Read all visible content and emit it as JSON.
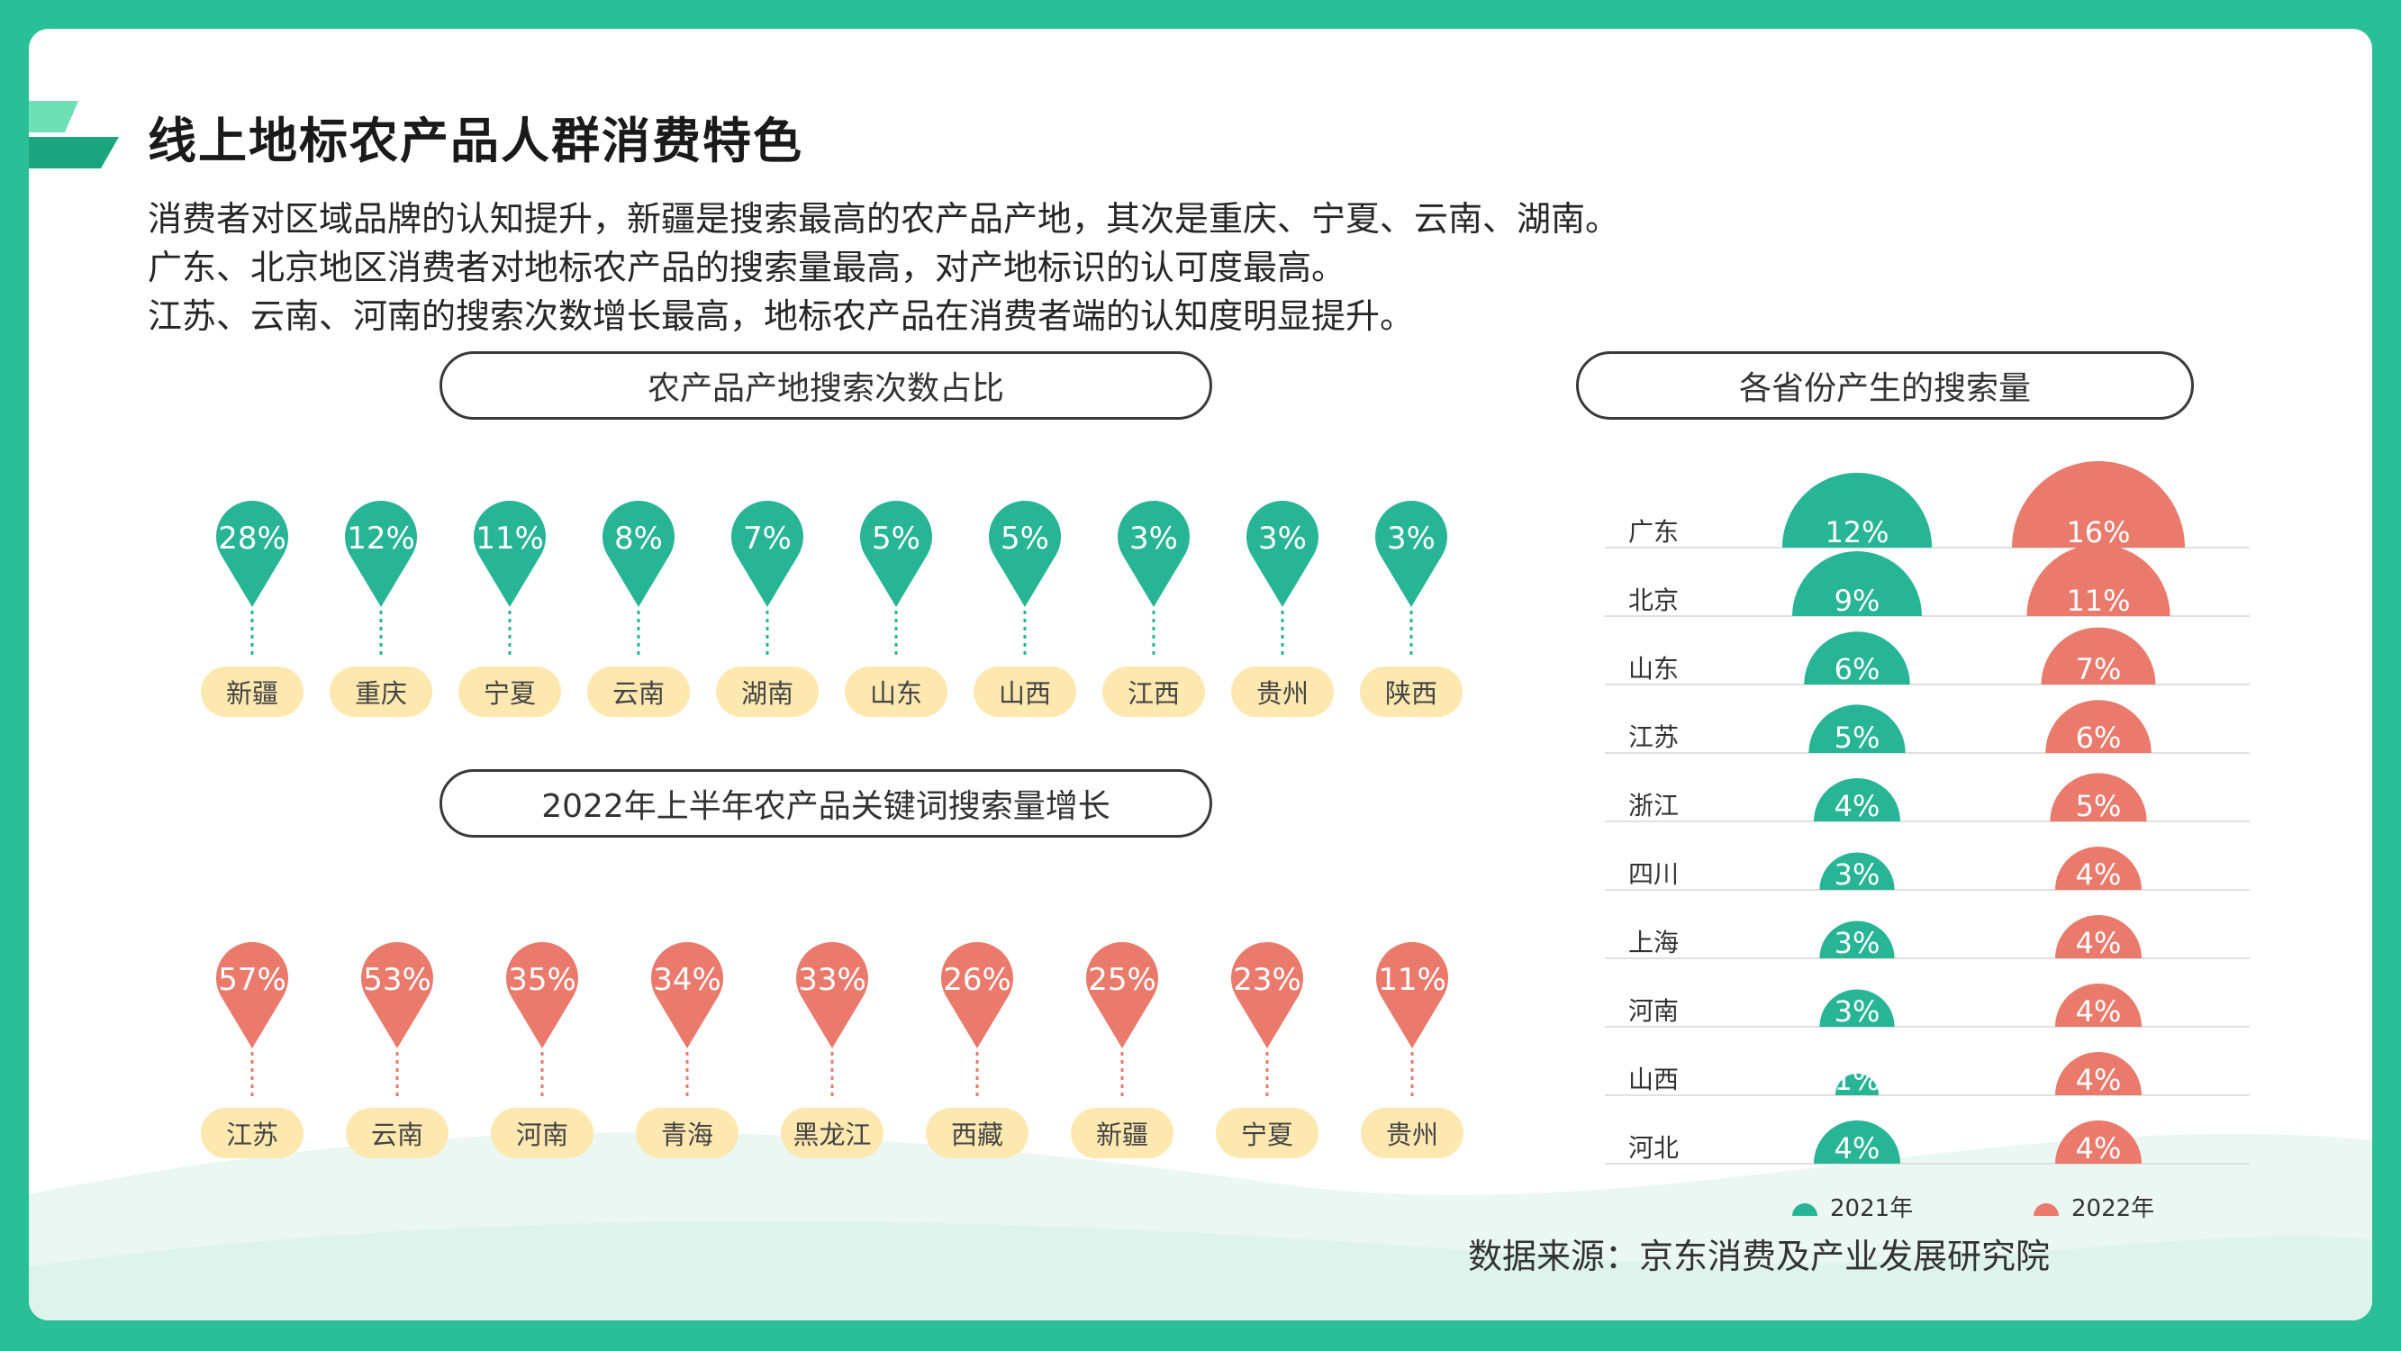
{
  "title": "线上地标农产品人群消费特色",
  "descriptions": [
    "消费者对区域品牌的认知提升，新疆是搜索最高的农产品产地，其次是重庆、宁夏、云南、湖南。",
    "广东、北京地区消费者对地标农产品的搜索量最高，对产地标识的认可度最高。",
    "江苏、云南、河南的搜索次数增长最高，地标农产品在消费者端的认知度明显提升。"
  ],
  "source": "数据来源：京东消费及产业发展研究院",
  "colors": {
    "teal": "#27b596",
    "coral": "#ea7a6c",
    "tag": "#fde8b0",
    "frame": "#2bbf98"
  },
  "chart_data": [
    {
      "type": "bar",
      "title": "农产品产地搜索次数占比",
      "categories": [
        "新疆",
        "重庆",
        "宁夏",
        "云南",
        "湖南",
        "山东",
        "山西",
        "江西",
        "贵州",
        "陕西"
      ],
      "values": [
        28,
        12,
        11,
        8,
        7,
        5,
        5,
        3,
        3,
        3
      ],
      "labels": [
        "28%",
        "12%",
        "11%",
        "8%",
        "7%",
        "5%",
        "5%",
        "3%",
        "3%",
        "3%"
      ]
    },
    {
      "type": "bar",
      "title": "2022年上半年农产品关键词搜索量增长",
      "categories": [
        "江苏",
        "云南",
        "河南",
        "青海",
        "黑龙江",
        "西藏",
        "新疆",
        "宁夏",
        "贵州"
      ],
      "values": [
        57,
        53,
        35,
        34,
        33,
        26,
        25,
        23,
        11
      ],
      "labels": [
        "57%",
        "53%",
        "35%",
        "34%",
        "33%",
        "26%",
        "25%",
        "23%",
        "11%"
      ]
    },
    {
      "type": "bar",
      "title": "各省份产生的搜索量",
      "categories": [
        "广东",
        "北京",
        "山东",
        "江苏",
        "浙江",
        "四川",
        "上海",
        "河南",
        "山西",
        "河北"
      ],
      "series": [
        {
          "name": "2021年",
          "values": [
            12,
            9,
            6,
            5,
            4,
            3,
            3,
            3,
            1,
            4
          ],
          "labels": [
            "12%",
            "9%",
            "6%",
            "5%",
            "4%",
            "3%",
            "3%",
            "3%",
            "1%",
            "4%"
          ]
        },
        {
          "name": "2022年",
          "values": [
            16,
            11,
            7,
            6,
            5,
            4,
            4,
            4,
            4,
            4
          ],
          "labels": [
            "16%",
            "11%",
            "7%",
            "6%",
            "5%",
            "4%",
            "4%",
            "4%",
            "4%",
            "4%"
          ]
        }
      ],
      "legend": "bottom"
    }
  ]
}
